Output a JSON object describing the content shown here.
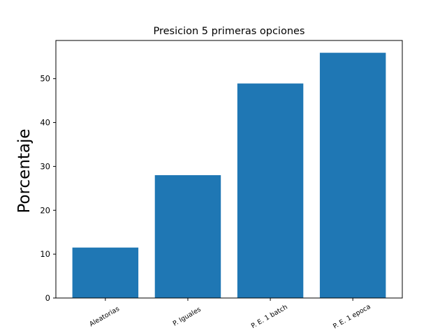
{
  "chart_data": {
    "type": "bar",
    "title": "Presicion 5 primeras opciones",
    "xlabel": "",
    "ylabel": "Porcentaje",
    "categories": [
      "Aleatorias",
      "P. Iguales",
      "P. E. 1 batch",
      "P. E. 1 epoca"
    ],
    "values": [
      11.5,
      28.0,
      48.9,
      55.9
    ],
    "ylim": [
      0,
      58.7
    ],
    "yticks": [
      0,
      10,
      20,
      30,
      40,
      50
    ],
    "bar_color": "#1f77b4",
    "grid": false,
    "legend": "none"
  }
}
